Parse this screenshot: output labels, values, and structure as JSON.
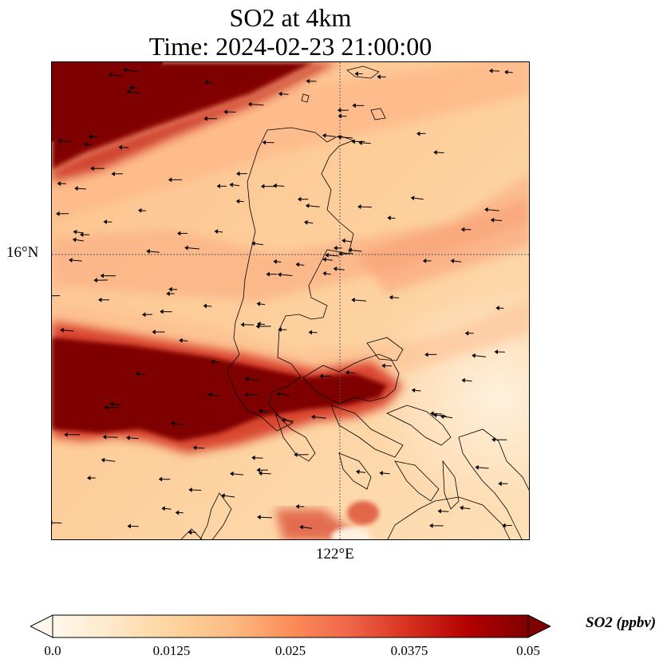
{
  "title": {
    "line1": "SO2 at 4km",
    "line2": "Time: 2024-02-23 21:00:00"
  },
  "map": {
    "variable": "SO2",
    "level": "4km",
    "lat_tick_label": "16°N",
    "lon_tick_label": "122°E",
    "gridlines": true,
    "features": [
      "coastline",
      "wind-vectors"
    ]
  },
  "colorbar": {
    "label": "SO2 (ppbv)",
    "ticks": [
      "0.0",
      "0.0125",
      "0.025",
      "0.0375",
      "0.05"
    ],
    "min": 0.0,
    "max": 0.05,
    "extend": "both",
    "colormap": "OrRd",
    "colors": [
      "#fff7ec",
      "#fee8c8",
      "#fdd49e",
      "#fdbb84",
      "#fc8d59",
      "#ef6548",
      "#d7301f",
      "#b30000",
      "#7f0000"
    ]
  }
}
